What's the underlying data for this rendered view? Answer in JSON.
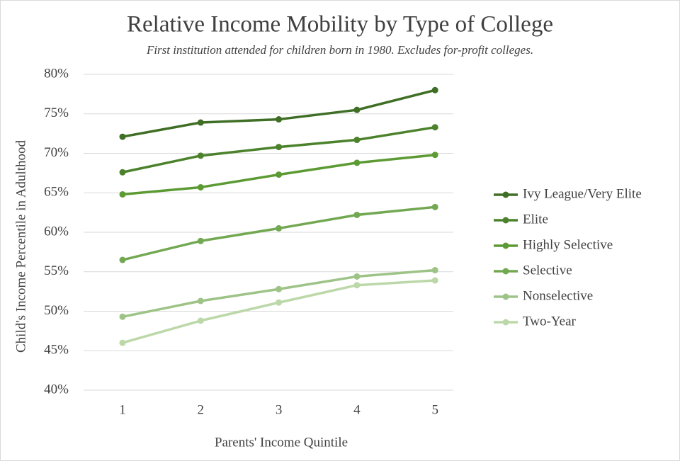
{
  "chart_data": {
    "type": "line",
    "title": "Relative Income Mobility by Type of College",
    "subtitle": "First institution attended for children born in 1980. Excludes for-profit colleges.",
    "x_label": "Parents' Income Quintile",
    "y_label": "Child's Income Percentile in Adulthood",
    "categories": [
      1,
      2,
      3,
      4,
      5
    ],
    "ylim": [
      40,
      80
    ],
    "yticks": [
      {
        "value": 40,
        "label": "40%"
      },
      {
        "value": 45,
        "label": "45%"
      },
      {
        "value": 50,
        "label": "50%"
      },
      {
        "value": 55,
        "label": "55%"
      },
      {
        "value": 60,
        "label": "60%"
      },
      {
        "value": 65,
        "label": "65%"
      },
      {
        "value": 70,
        "label": "70%"
      },
      {
        "value": 75,
        "label": "75%"
      },
      {
        "value": 80,
        "label": "80%"
      }
    ],
    "grid": true,
    "legend": "right",
    "series": [
      {
        "name": "Ivy League/Very Elite",
        "color": "#3f6e25",
        "values": [
          72.1,
          73.9,
          74.3,
          75.5,
          78.0
        ]
      },
      {
        "name": "Elite",
        "color": "#4b822b",
        "values": [
          67.6,
          69.7,
          70.8,
          71.7,
          73.3
        ]
      },
      {
        "name": "Highly Selective",
        "color": "#5c9a33",
        "values": [
          64.8,
          65.7,
          67.3,
          68.8,
          69.8
        ]
      },
      {
        "name": "Selective",
        "color": "#72a852",
        "values": [
          56.5,
          58.9,
          60.5,
          62.2,
          63.2
        ]
      },
      {
        "name": "Nonselective",
        "color": "#9dc386",
        "values": [
          49.3,
          51.3,
          52.8,
          54.4,
          55.2
        ]
      },
      {
        "name": "Two-Year",
        "color": "#bcd8a9",
        "values": [
          46.0,
          48.8,
          51.1,
          53.3,
          53.9
        ]
      }
    ]
  }
}
